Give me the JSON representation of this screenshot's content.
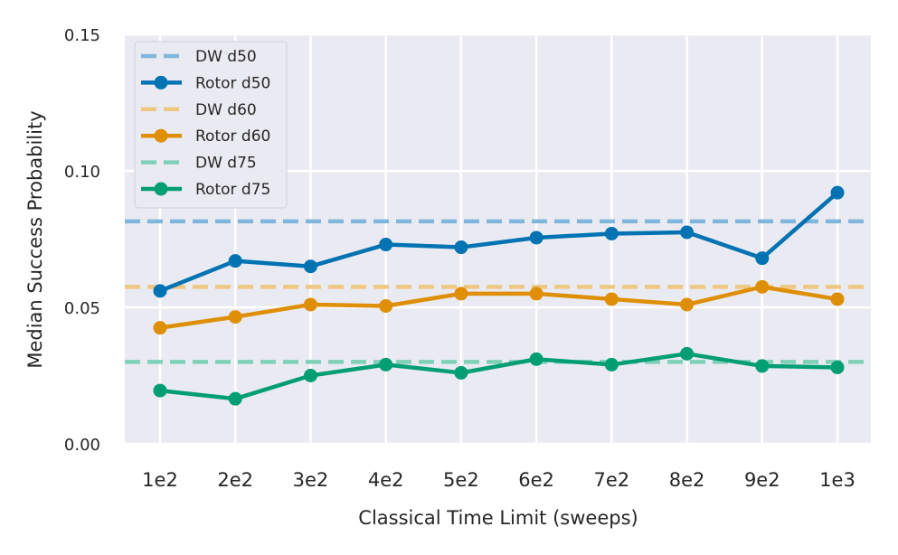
{
  "chart_data": {
    "type": "line",
    "xlabel": "Classical Time Limit (sweeps)",
    "ylabel": "Median Success Probability",
    "categories": [
      "1e2",
      "2e2",
      "3e2",
      "4e2",
      "5e2",
      "6e2",
      "7e2",
      "8e2",
      "9e2",
      "1e3"
    ],
    "ylim": [
      0.0,
      0.15
    ],
    "yticks": [
      "0.00",
      "0.05",
      "0.10",
      "0.15"
    ],
    "grid": true,
    "legend_position": "upper-left",
    "series": [
      {
        "name": "DW d50",
        "style": "dashed",
        "color": "#7fb7dc",
        "value": 0.0815
      },
      {
        "name": "Rotor d50",
        "style": "solid-marker",
        "color": "#0173b2",
        "values": [
          0.056,
          0.067,
          0.065,
          0.073,
          0.072,
          0.0755,
          0.077,
          0.0775,
          0.068,
          0.092
        ]
      },
      {
        "name": "DW d60",
        "style": "dashed",
        "color": "#eec882",
        "value": 0.0575
      },
      {
        "name": "Rotor d60",
        "style": "solid-marker",
        "color": "#de8f05",
        "values": [
          0.0425,
          0.0465,
          0.051,
          0.0505,
          0.055,
          0.055,
          0.053,
          0.051,
          0.0575,
          0.053
        ]
      },
      {
        "name": "DW d75",
        "style": "dashed",
        "color": "#7fd0b8",
        "value": 0.03
      },
      {
        "name": "Rotor d75",
        "style": "solid-marker",
        "color": "#029e73",
        "values": [
          0.0195,
          0.0165,
          0.025,
          0.029,
          0.026,
          0.031,
          0.029,
          0.033,
          0.0285,
          0.028
        ]
      }
    ]
  }
}
